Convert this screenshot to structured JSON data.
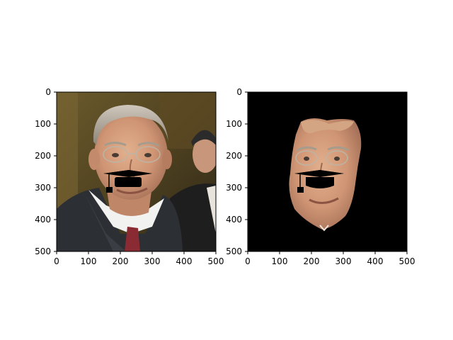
{
  "figure": {
    "background": "#ffffff",
    "panels": [
      {
        "name": "original-image",
        "content": "photo-with-graduation-cap-overlay",
        "xlim": [
          0,
          500
        ],
        "ylim": [
          500,
          0
        ],
        "x_ticks": [
          "0",
          "100",
          "200",
          "300",
          "400",
          "500"
        ],
        "y_ticks": [
          "0",
          "100",
          "200",
          "300",
          "400",
          "500"
        ]
      },
      {
        "name": "masked-face-image",
        "content": "face-cutout-on-black-with-graduation-cap-overlay",
        "xlim": [
          0,
          500
        ],
        "ylim": [
          500,
          0
        ],
        "x_ticks": [
          "0",
          "100",
          "200",
          "300",
          "400",
          "500"
        ],
        "y_ticks": [
          "0",
          "100",
          "200",
          "300",
          "400",
          "500"
        ]
      }
    ]
  }
}
